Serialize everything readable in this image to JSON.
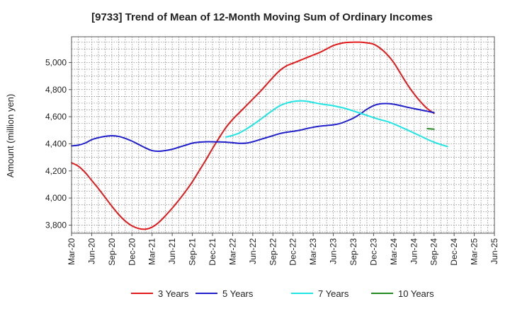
{
  "chart_data": {
    "type": "line",
    "title": "[9733]  Trend of Mean of 12-Month Moving Sum of Ordinary Incomes",
    "xlabel": "",
    "ylabel": "Amount (million yen)",
    "ylim": [
      3740,
      5190
    ],
    "yticks": [
      3800,
      4000,
      4200,
      4400,
      4600,
      4800,
      5000
    ],
    "ytick_labels": [
      "3,800",
      "4,000",
      "4,200",
      "4,400",
      "4,600",
      "4,800",
      "5,000"
    ],
    "xticks": [
      "Mar-20",
      "Jun-20",
      "Sep-20",
      "Dec-20",
      "Mar-21",
      "Jun-21",
      "Sep-21",
      "Dec-21",
      "Mar-22",
      "Jun-22",
      "Sep-22",
      "Dec-22",
      "Mar-23",
      "Jun-23",
      "Sep-23",
      "Dec-23",
      "Mar-24",
      "Jun-24",
      "Sep-24",
      "Dec-24",
      "Mar-25",
      "Jun-25"
    ],
    "grid": true,
    "legend_position": "bottom",
    "series": [
      {
        "name": "3 Years",
        "color": "#e31a1c",
        "start_index": 0,
        "values": [
          4260,
          4235,
          4190,
          4130,
          4070,
          4005,
          3940,
          3880,
          3830,
          3795,
          3775,
          3770,
          3785,
          3820,
          3870,
          3925,
          3985,
          4050,
          4120,
          4200,
          4280,
          4365,
          4445,
          4520,
          4580,
          4630,
          4680,
          4730,
          4780,
          4835,
          4890,
          4940,
          4975,
          4995,
          5015,
          5035,
          5055,
          5075,
          5100,
          5125,
          5140,
          5148,
          5150,
          5150,
          5145,
          5135,
          5105,
          5060,
          5000,
          4920,
          4840,
          4770,
          4710,
          4660,
          4625
        ]
      },
      {
        "name": "5 Years",
        "color": "#1f1fcc",
        "start_index": 0,
        "values": [
          4385,
          4390,
          4405,
          4430,
          4445,
          4455,
          4460,
          4455,
          4440,
          4420,
          4395,
          4370,
          4350,
          4345,
          4350,
          4360,
          4375,
          4390,
          4405,
          4412,
          4415,
          4415,
          4414,
          4412,
          4408,
          4404,
          4405,
          4415,
          4430,
          4445,
          4460,
          4475,
          4485,
          4492,
          4500,
          4512,
          4522,
          4530,
          4535,
          4540,
          4550,
          4568,
          4590,
          4620,
          4655,
          4682,
          4695,
          4697,
          4692,
          4682,
          4670,
          4660,
          4650,
          4640,
          4630
        ]
      },
      {
        "name": "7 Years",
        "color": "#1fe5e5",
        "start_index": 23,
        "values": [
          4450,
          4462,
          4480,
          4508,
          4540,
          4575,
          4612,
          4648,
          4680,
          4700,
          4712,
          4717,
          4714,
          4705,
          4695,
          4688,
          4681,
          4670,
          4658,
          4642,
          4626,
          4610,
          4593,
          4578,
          4565,
          4547,
          4525,
          4503,
          4480,
          4457,
          4433,
          4412,
          4395,
          4380
        ]
      },
      {
        "name": "10 Years",
        "color": "#228b22",
        "start_index": 53,
        "values": [
          4512,
          4508
        ]
      }
    ]
  }
}
